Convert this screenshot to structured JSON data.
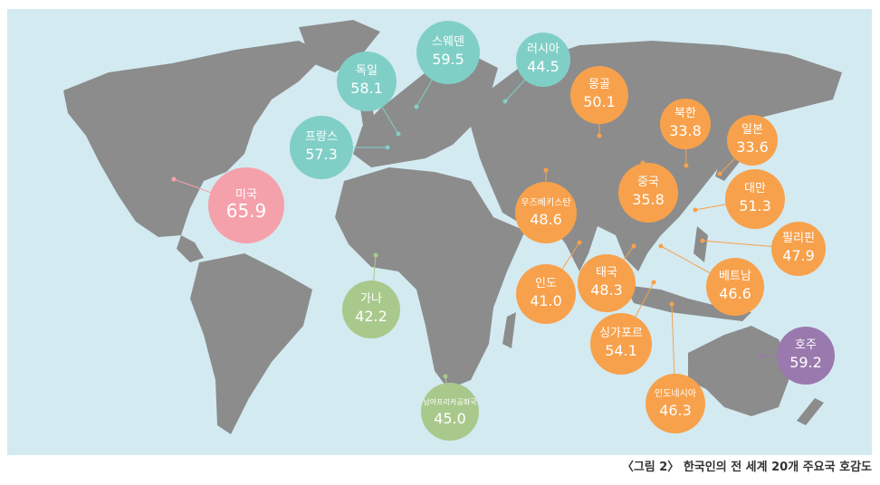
{
  "countries": [
    {
      "name": "스웨덴",
      "value": "59.5",
      "color": "#80cfc7"
    },
    {
      "name": "러시아",
      "value": "44.5",
      "color": "#80cfc7"
    },
    {
      "name": "독일",
      "value": "58.1",
      "color": "#80cfc7"
    },
    {
      "name": "프랑스",
      "value": "57.3",
      "color": "#80cfc7"
    },
    {
      "name": "미국",
      "value": "65.9",
      "color": "#f5a1ab"
    },
    {
      "name": "가나",
      "value": "42.2",
      "color": "#a9c98c"
    },
    {
      "name": "남아프리카공화국",
      "value": "45.0",
      "color": "#a9c98c"
    },
    {
      "name": "몽골",
      "value": "50.1",
      "color": "#f7a14c"
    },
    {
      "name": "북한",
      "value": "33.8",
      "color": "#f7a14c"
    },
    {
      "name": "일본",
      "value": "33.6",
      "color": "#f7a14c"
    },
    {
      "name": "우즈베키스탄",
      "value": "48.6",
      "color": "#f7a14c"
    },
    {
      "name": "중국",
      "value": "35.8",
      "color": "#f7a14c"
    },
    {
      "name": "대만",
      "value": "51.3",
      "color": "#f7a14c"
    },
    {
      "name": "필리핀",
      "value": "47.9",
      "color": "#f7a14c"
    },
    {
      "name": "인도",
      "value": "41.0",
      "color": "#f7a14c"
    },
    {
      "name": "태국",
      "value": "48.3",
      "color": "#f7a14c"
    },
    {
      "name": "베트남",
      "value": "46.6",
      "color": "#f7a14c"
    },
    {
      "name": "싱가포르",
      "value": "54.1",
      "color": "#f7a14c"
    },
    {
      "name": "호주",
      "value": "59.2",
      "color": "#9a79ae"
    },
    {
      "name": "인도네시아",
      "value": "46.3",
      "color": "#f7a14c"
    }
  ],
  "caption": "〈그림 2〉 한국인의 전 세계 20개 주요국 호감도"
}
